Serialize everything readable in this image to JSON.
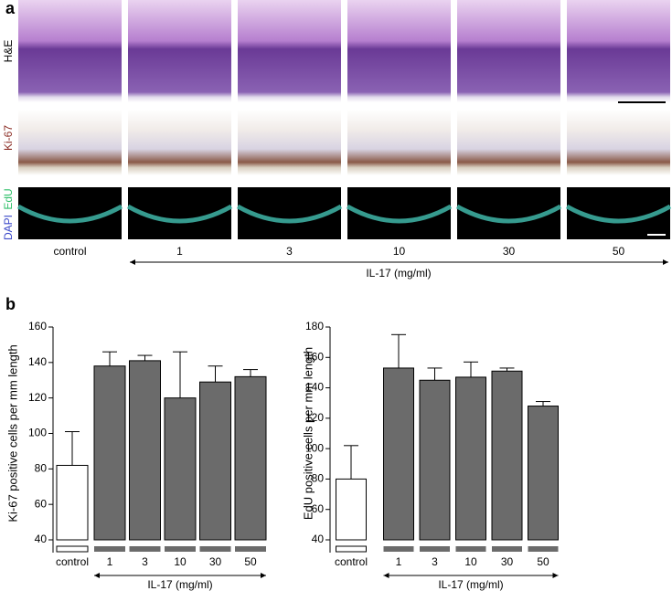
{
  "panel_a": {
    "label": "a",
    "row_labels": {
      "he": "H&E",
      "ki67": "Ki-67",
      "edu": "EdU",
      "dapi": "DAPI"
    },
    "columns": [
      "control",
      "1",
      "3",
      "10",
      "30",
      "50"
    ],
    "group_label": "IL-17 (mg/ml)"
  },
  "panel_b_label": "b",
  "chart_data": [
    {
      "type": "bar",
      "y_label": "Ki-67 positive cells per mm length",
      "categories": [
        "control",
        "1",
        "3",
        "10",
        "30",
        "50"
      ],
      "values": [
        82,
        138,
        141,
        120,
        129,
        132
      ],
      "errors": [
        19,
        8,
        3,
        26,
        9,
        4
      ],
      "colors": [
        "#ffffff",
        "#6b6b6b",
        "#6b6b6b",
        "#6b6b6b",
        "#6b6b6b",
        "#6b6b6b"
      ],
      "ylim": [
        40,
        160
      ],
      "yticks": [
        40,
        60,
        80,
        100,
        120,
        140,
        160
      ],
      "x_group_label": "IL-17 (mg/ml)"
    },
    {
      "type": "bar",
      "y_label": "EdU positive cells per mm length",
      "categories": [
        "control",
        "1",
        "3",
        "10",
        "30",
        "50"
      ],
      "values": [
        80,
        153,
        145,
        147,
        151,
        128
      ],
      "errors": [
        22,
        22,
        8,
        10,
        2,
        3
      ],
      "colors": [
        "#ffffff",
        "#6b6b6b",
        "#6b6b6b",
        "#6b6b6b",
        "#6b6b6b",
        "#6b6b6b"
      ],
      "ylim": [
        40,
        180
      ],
      "yticks": [
        40,
        60,
        80,
        100,
        120,
        140,
        160,
        180
      ],
      "x_group_label": "IL-17 (mg/ml)"
    }
  ]
}
